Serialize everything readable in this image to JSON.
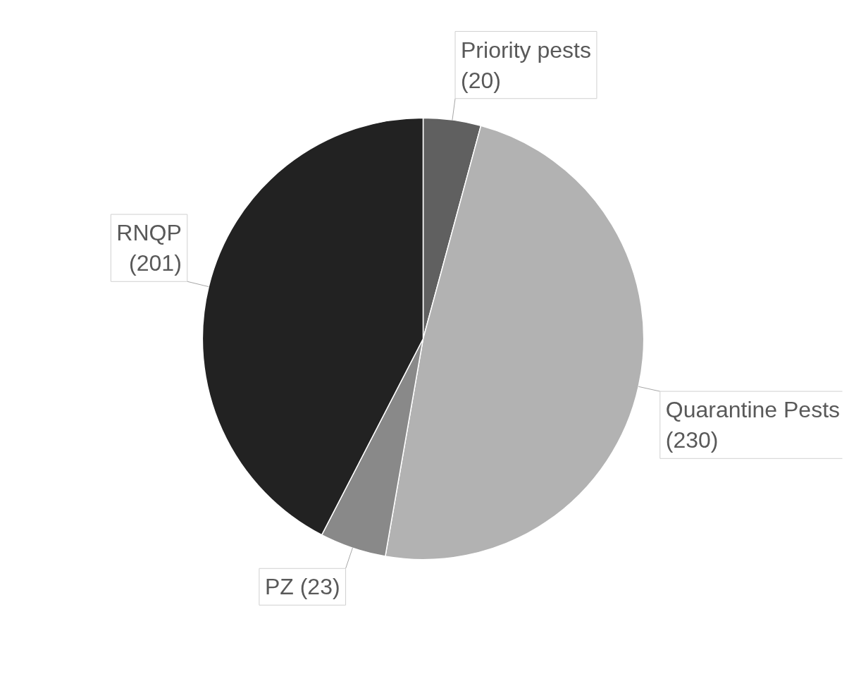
{
  "chart_data": {
    "type": "pie",
    "categories": [
      "Priority pests (20)",
      "Quarantine Pests  (230)",
      "PZ (23)",
      "RNQP (201)"
    ],
    "values": [
      20,
      230,
      23,
      201
    ],
    "colors": [
      "#606060",
      "#b2b2b2",
      "#898989",
      "#222222"
    ]
  }
}
